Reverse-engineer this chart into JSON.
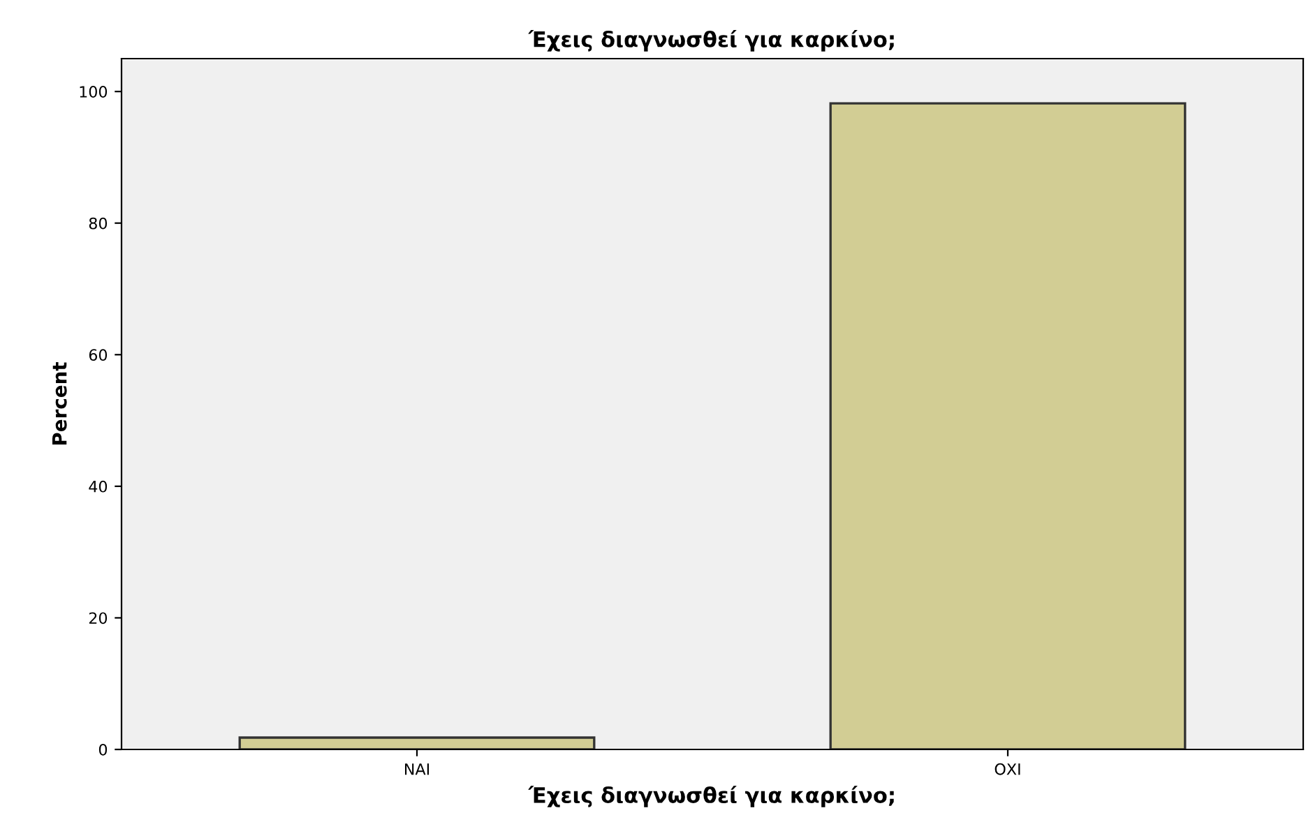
{
  "chart_data": {
    "type": "bar",
    "title": "Έχεις διαγνωσθεί για καρκίνο;",
    "xlabel": "Έχεις διαγνωσθεί για καρκίνο;",
    "ylabel": "Percent",
    "categories": [
      "ΝΑΙ",
      "ΟΧΙ"
    ],
    "values": [
      1.8,
      98.2
    ],
    "color": "#d2cd94",
    "ylim": [
      0,
      105
    ],
    "yticks": [
      0,
      20,
      40,
      60,
      80,
      100
    ],
    "grid": false
  }
}
